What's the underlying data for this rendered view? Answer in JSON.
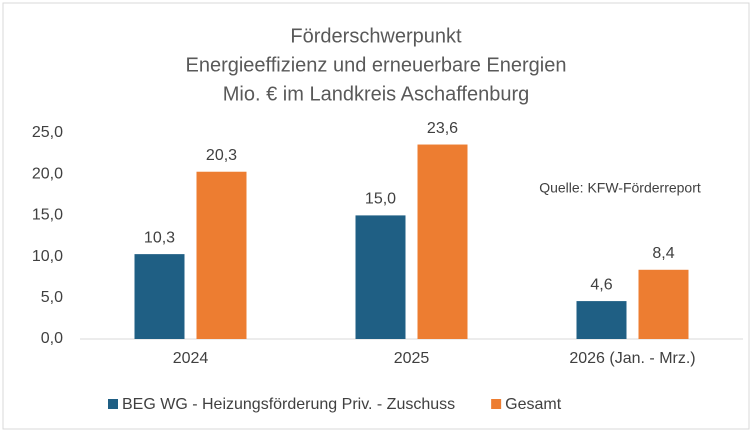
{
  "chart_data": {
    "type": "bar",
    "title": [
      "Förderschwerpunkt",
      "Energieeffizienz und erneuerbare Energien",
      "Mio. € im Landkreis Aschaffenburg"
    ],
    "categories": [
      "2024",
      "2025",
      "2026 (Jan. - Mrz.)"
    ],
    "series": [
      {
        "name": "BEG WG - Heizungsförderung Priv. - Zuschuss",
        "color": "#1f5f84",
        "values": [
          10.3,
          15.0,
          4.6
        ],
        "value_labels": [
          "10,3",
          "15,0",
          "4,6"
        ]
      },
      {
        "name": "Gesamt",
        "color": "#ed7d31",
        "values": [
          20.3,
          23.6,
          8.4
        ],
        "value_labels": [
          "20,3",
          "23,6",
          "8,4"
        ]
      }
    ],
    "ylim": [
      0,
      25
    ],
    "yticks": [
      {
        "value": 0,
        "label": "0,0"
      },
      {
        "value": 5,
        "label": "5,0"
      },
      {
        "value": 10,
        "label": "10,0"
      },
      {
        "value": 15,
        "label": "15,0"
      },
      {
        "value": 20,
        "label": "20,0"
      },
      {
        "value": 25,
        "label": "25,0"
      }
    ],
    "annotation": "Quelle: KFW-Förderreport",
    "grid": false,
    "legend": "bottom"
  }
}
